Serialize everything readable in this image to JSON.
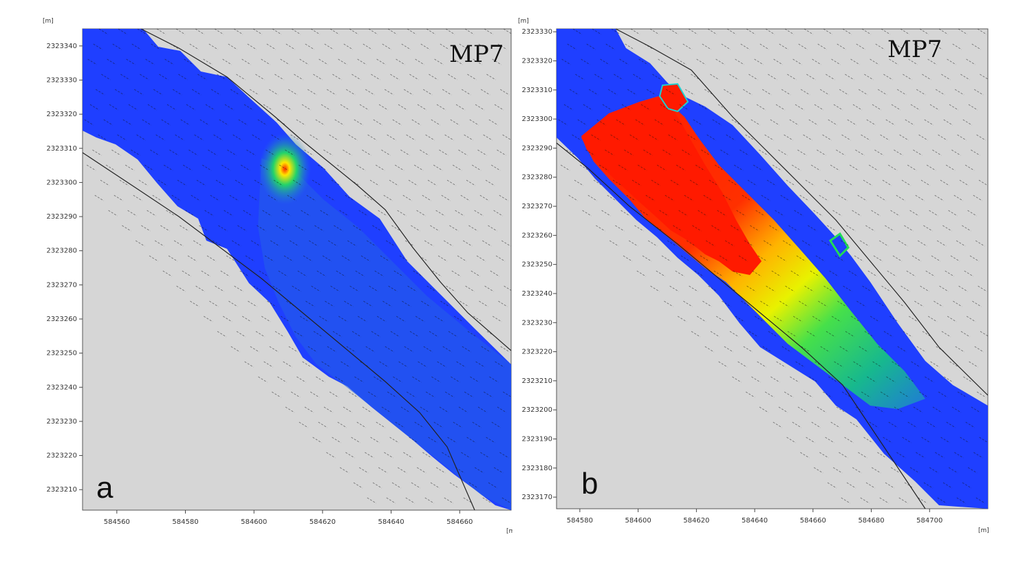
{
  "chart_data": [
    {
      "type": "heatmap",
      "panel_letter": "a",
      "station_label": "MP7",
      "x_unit": "[m]",
      "y_unit": "[m]",
      "x_ticks": [
        584560,
        584580,
        584600,
        584620,
        584640,
        584660
      ],
      "y_ticks": [
        2323340,
        2323330,
        2323320,
        2323310,
        2323300,
        2323290,
        2323280,
        2323270,
        2323260,
        2323250,
        2323240,
        2323230,
        2323220,
        2323210
      ],
      "xlim": [
        584550,
        584675
      ],
      "ylim": [
        2323204,
        2323345
      ],
      "background_color": "#d6d6d6",
      "field_base_color": "#1f3fff",
      "hotspot": {
        "x": 584609,
        "y": 2323304,
        "peak": "yellow-red",
        "extent": "small"
      },
      "grid": false
    },
    {
      "type": "heatmap",
      "panel_letter": "b",
      "station_label": "MP7",
      "x_unit": "[m]",
      "y_unit": "[m]",
      "x_ticks": [
        584580,
        584600,
        584620,
        584640,
        584660,
        584680,
        584700
      ],
      "y_ticks": [
        2323330,
        2323320,
        2323310,
        2323300,
        2323290,
        2323280,
        2323270,
        2323260,
        2323250,
        2323240,
        2323230,
        2323220,
        2323210,
        2323200,
        2323190,
        2323180,
        2323170
      ],
      "xlim": [
        584572,
        584720
      ],
      "ylim": [
        2323166,
        2323331
      ],
      "background_color": "#d6d6d6",
      "field_base_color": "#1f3fff",
      "hotspot": {
        "x": 584605,
        "y": 2323295,
        "peak": "red",
        "extent": "large plume"
      },
      "grid": false
    }
  ]
}
